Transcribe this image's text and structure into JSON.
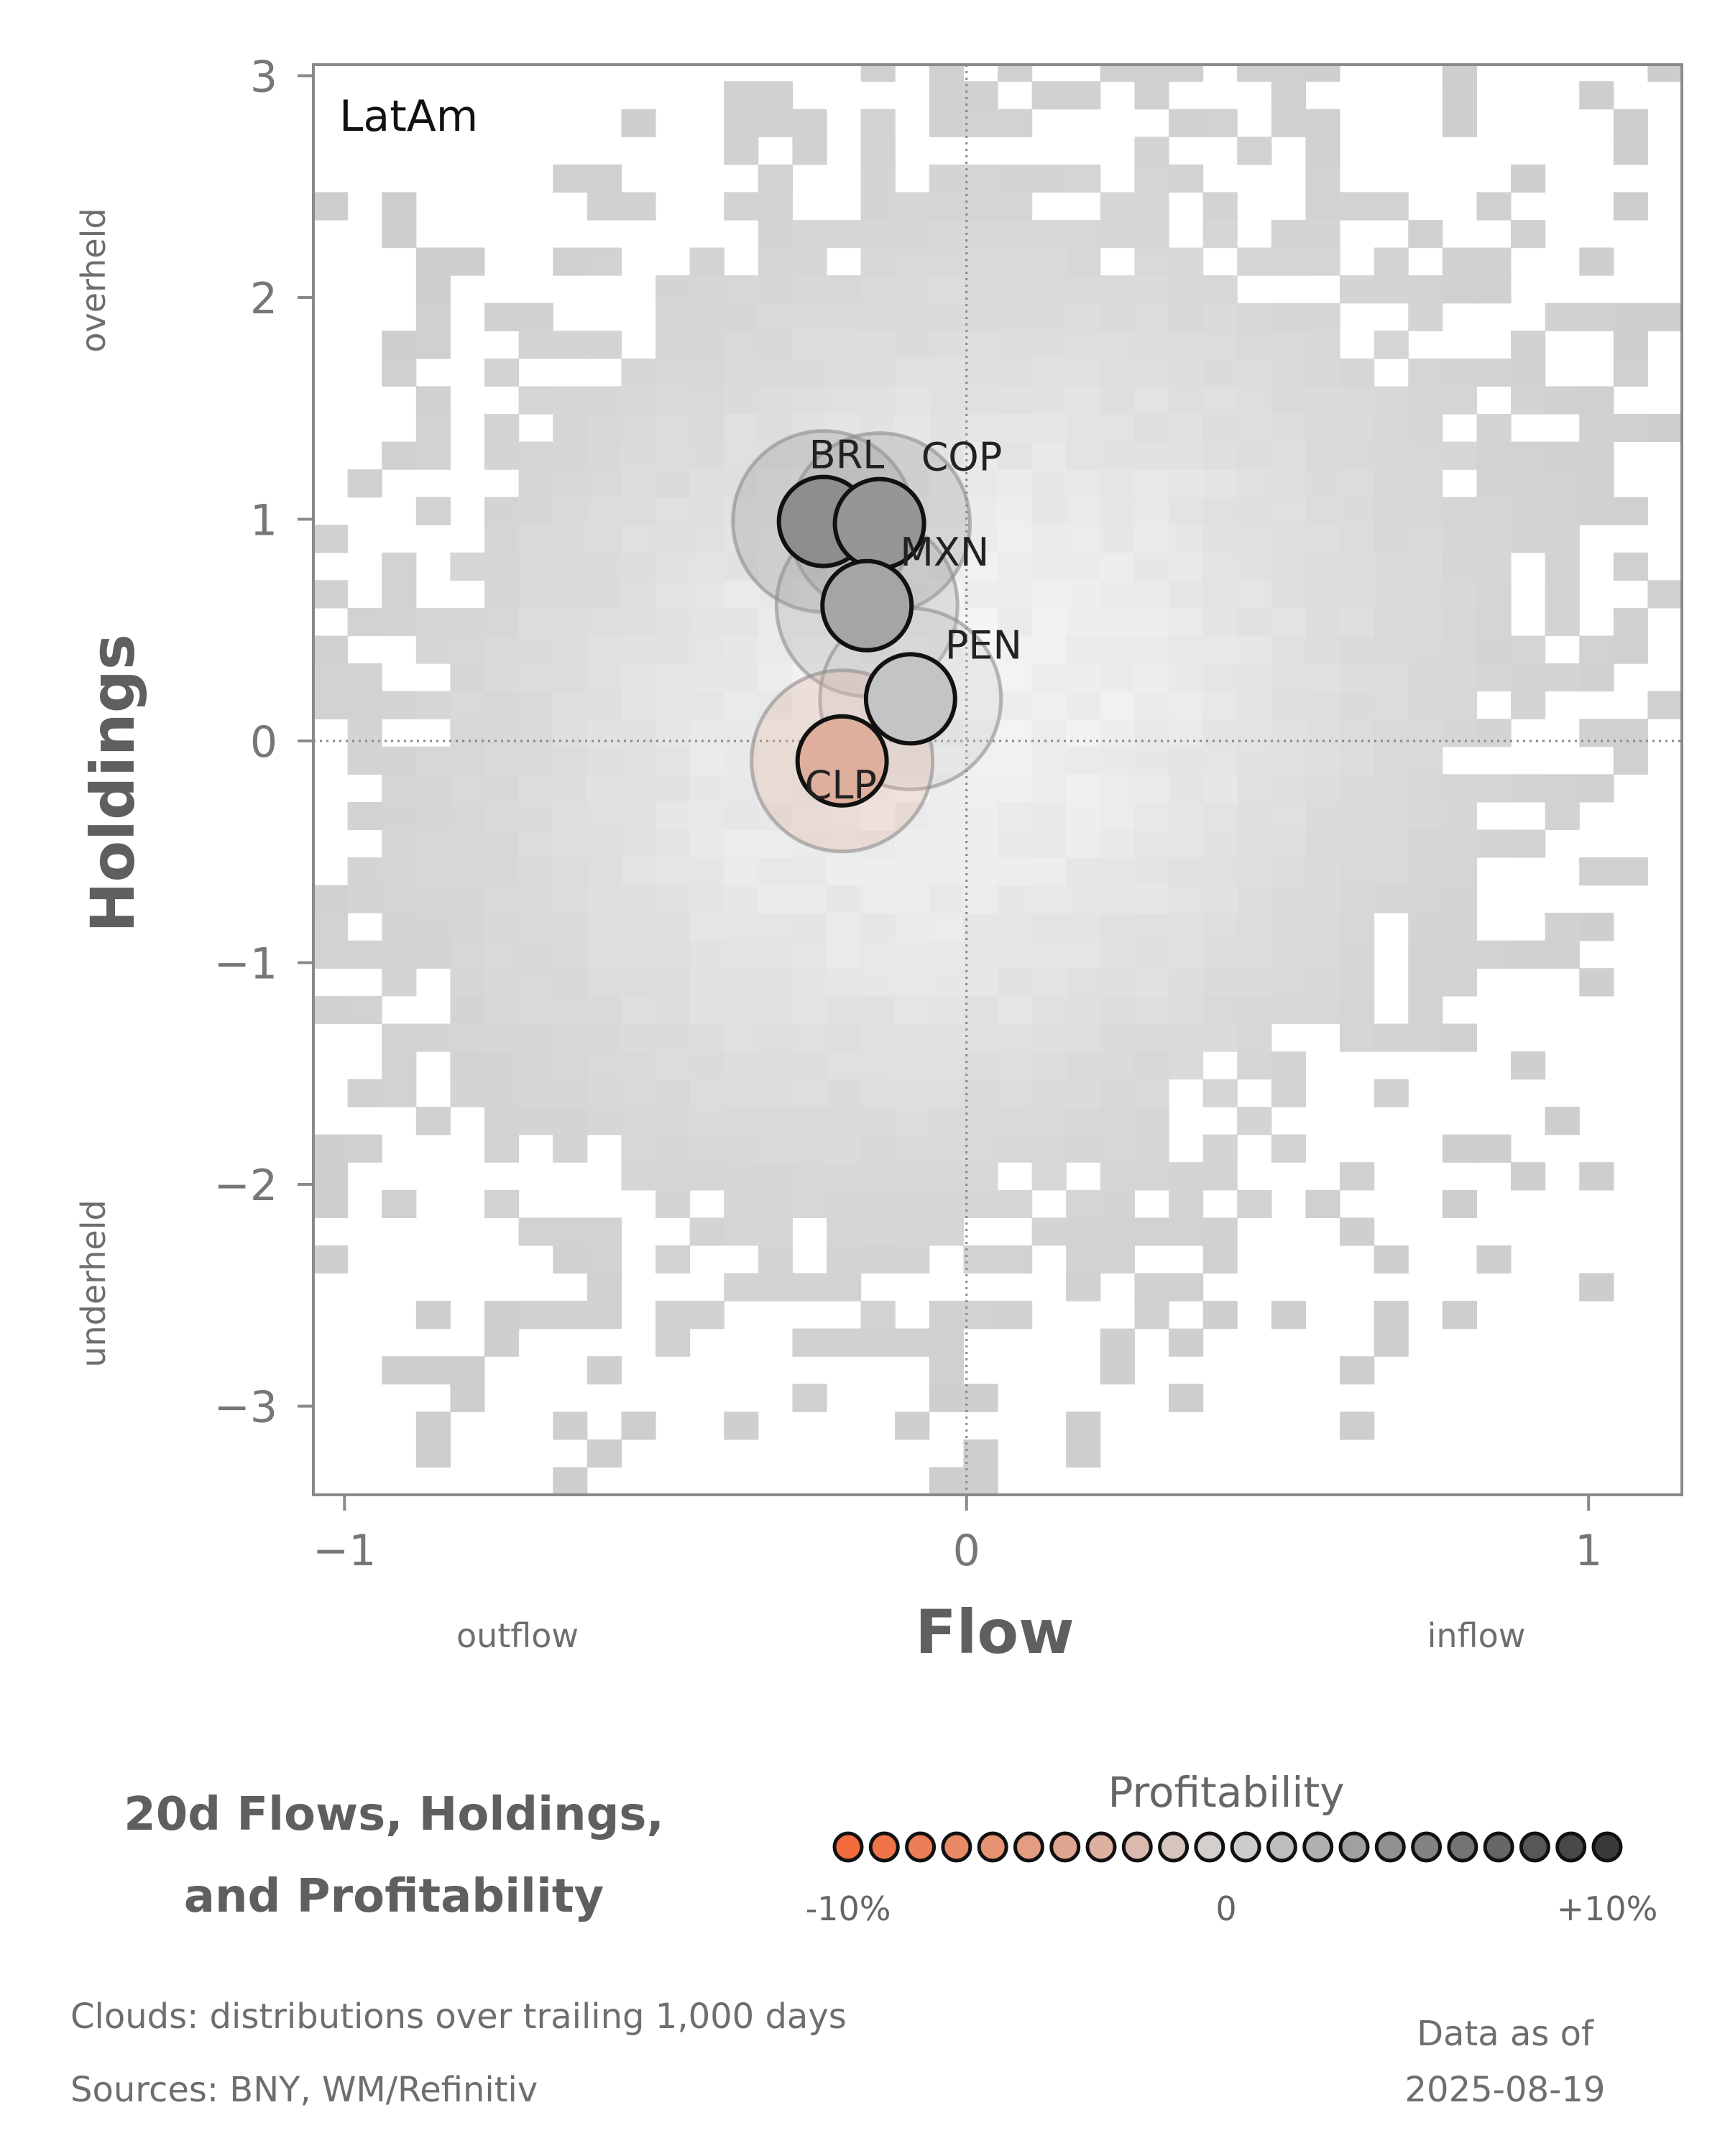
{
  "chart_data": {
    "type": "scatter",
    "panel_label": "LatAm",
    "xlabel": "Flow",
    "ylabel": "Holdings",
    "xlim": [
      -1.05,
      1.15
    ],
    "ylim": [
      -3.4,
      3.05
    ],
    "x_ticks": [
      -1,
      0,
      1
    ],
    "y_ticks": [
      -3,
      -2,
      -1,
      0,
      1,
      2,
      3
    ],
    "x_tick_labels": [
      "−1",
      "0",
      "1"
    ],
    "y_tick_labels": [
      "−3",
      "−2",
      "−1",
      "0",
      "1",
      "2",
      "3"
    ],
    "x_side_labels": {
      "left": "outflow",
      "right": "inflow"
    },
    "y_side_labels": {
      "top": "overheld",
      "bottom": "underheld"
    },
    "reference_lines": {
      "x": 0,
      "y": 0,
      "style": "dotted"
    },
    "background": "2D histogram cloud of trailing flow/holdings distribution",
    "points": [
      {
        "label": "BRL",
        "x": -0.23,
        "y": 0.99,
        "profitability": 4.5
      },
      {
        "label": "COP",
        "x": -0.14,
        "y": 0.98,
        "profitability": 4.0
      },
      {
        "label": "MXN",
        "x": -0.16,
        "y": 0.61,
        "profitability": 3.0
      },
      {
        "label": "PEN",
        "x": -0.09,
        "y": 0.19,
        "profitability": 1.0
      },
      {
        "label": "CLP",
        "x": -0.2,
        "y": -0.09,
        "profitability": -3.5
      }
    ],
    "colorscale": {
      "title": "Profitability",
      "min": -10,
      "max": 10,
      "tick_labels": [
        "-10%",
        "0",
        "+10%"
      ],
      "low_color": "#f26b3a",
      "mid_color": "#d3d3d3",
      "high_color": "#3a3a3a"
    },
    "title": "20d Flows, Holdings, and Profitability",
    "title_lines": [
      "20d Flows, Holdings,",
      "and Profitability"
    ]
  },
  "footer": {
    "clouds_note": "Clouds:  distributions over trailing 1,000 days",
    "sources_note": "Sources:  BNY, WM/Refinitiv",
    "as_of_label": "Data as of",
    "as_of_date": "2025-08-19"
  }
}
